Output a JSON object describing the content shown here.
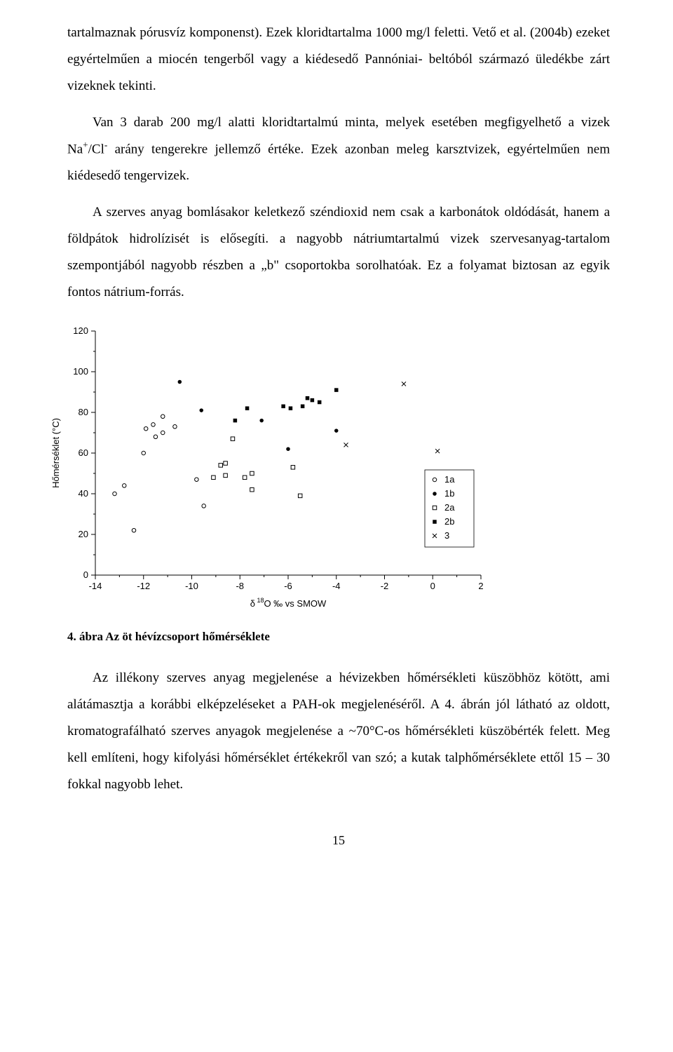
{
  "paragraphs": {
    "p1": "tartalmaznak pórusvíz komponenst). Ezek kloridtartalma 1000 mg/l feletti. Vető et al. (2004b) ezeket egyértelműen a miocén tengerből vagy a kiédesedő Pannóniai- beltóból származó üledékbe zárt vizeknek tekinti.",
    "p2a": "Van 3 darab 200 mg/l alatti kloridtartalmú minta, melyek esetében megfigyelhető a vizek Na",
    "p2b": "/Cl",
    "p2c": " arány tengerekre jellemző értéke. Ezek azonban meleg karsztvizek, egyértelműen nem kiédesedő tengervizek.",
    "p3": "A szerves anyag bomlásakor keletkező széndioxid nem csak a karbonátok oldódását, hanem a földpátok hidrolízisét is elősegíti. a nagyobb nátriumtartalmú vizek szervesanyag-tartalom szempontjából nagyobb részben a „b\" csoportokba sorolhatóak. Ez a folyamat biztosan az egyik fontos nátrium-forrás.",
    "p4": "Az illékony szerves anyag megjelenése a hévizekben hőmérsékleti küszöbhöz kötött, ami alátámasztja a korábbi elképzeléseket a PAH-ok megjelenéséről. A 4. ábrán jól látható az oldott, kromatografálható szerves anyagok megjelenése a ~70°C-os hőmérsékleti küszöbérték felett. Meg kell említeni, hogy kifolyási hőmérséklet értékekről van szó; a kutak talphőmérséklete ettől 15 – 30 fokkal nagyobb lehet."
  },
  "caption": "4. ábra Az öt hévízcsoport hőmérséklete",
  "pagenum": "15",
  "chart": {
    "type": "scatter",
    "xlabel_prefix": "δ",
    "xlabel_sup": "18",
    "xlabel_rest": "O ‰ vs SMOW",
    "ylabel": "Hőmérséklet (°C)",
    "xlim": [
      -14,
      2
    ],
    "ylim": [
      0,
      120
    ],
    "xtick_step": 2,
    "ytick_step": 20,
    "background_color": "#ffffff",
    "axis_color": "#000000",
    "point_size": 5,
    "legend": {
      "items": [
        {
          "key": "1a",
          "label": "1a",
          "marker": "circle-open",
          "color": "#000000"
        },
        {
          "key": "1b",
          "label": "1b",
          "marker": "circle-filled",
          "color": "#000000"
        },
        {
          "key": "2a",
          "label": "2a",
          "marker": "square-open",
          "color": "#000000"
        },
        {
          "key": "2b",
          "label": "2b",
          "marker": "square-filled",
          "color": "#000000"
        },
        {
          "key": "3",
          "label": "3",
          "marker": "x",
          "color": "#000000"
        }
      ],
      "position": "right-inside"
    },
    "series": {
      "1a": [
        {
          "x": -13.2,
          "y": 40
        },
        {
          "x": -12.8,
          "y": 44
        },
        {
          "x": -12.4,
          "y": 22
        },
        {
          "x": -12.0,
          "y": 60
        },
        {
          "x": -11.9,
          "y": 72
        },
        {
          "x": -11.6,
          "y": 74
        },
        {
          "x": -11.5,
          "y": 68
        },
        {
          "x": -11.2,
          "y": 70
        },
        {
          "x": -11.2,
          "y": 78
        },
        {
          "x": -10.7,
          "y": 73
        },
        {
          "x": -9.8,
          "y": 47
        },
        {
          "x": -9.5,
          "y": 34
        }
      ],
      "1b": [
        {
          "x": -10.5,
          "y": 95
        },
        {
          "x": -9.6,
          "y": 81
        },
        {
          "x": -7.1,
          "y": 76
        },
        {
          "x": -6.0,
          "y": 62
        },
        {
          "x": -4.0,
          "y": 71
        }
      ],
      "2a": [
        {
          "x": -9.1,
          "y": 48
        },
        {
          "x": -8.8,
          "y": 54
        },
        {
          "x": -8.6,
          "y": 55
        },
        {
          "x": -8.6,
          "y": 49
        },
        {
          "x": -8.3,
          "y": 67
        },
        {
          "x": -7.8,
          "y": 48
        },
        {
          "x": -7.5,
          "y": 42
        },
        {
          "x": -7.5,
          "y": 50
        },
        {
          "x": -5.8,
          "y": 53
        },
        {
          "x": -5.5,
          "y": 39
        }
      ],
      "2b": [
        {
          "x": -8.2,
          "y": 76
        },
        {
          "x": -7.7,
          "y": 82
        },
        {
          "x": -6.2,
          "y": 83
        },
        {
          "x": -5.9,
          "y": 82
        },
        {
          "x": -5.4,
          "y": 83
        },
        {
          "x": -5.2,
          "y": 87
        },
        {
          "x": -5.0,
          "y": 86
        },
        {
          "x": -4.7,
          "y": 85
        },
        {
          "x": -4.0,
          "y": 91
        }
      ],
      "3": [
        {
          "x": -3.6,
          "y": 64
        },
        {
          "x": -1.2,
          "y": 94
        },
        {
          "x": 0.2,
          "y": 61
        }
      ]
    }
  }
}
